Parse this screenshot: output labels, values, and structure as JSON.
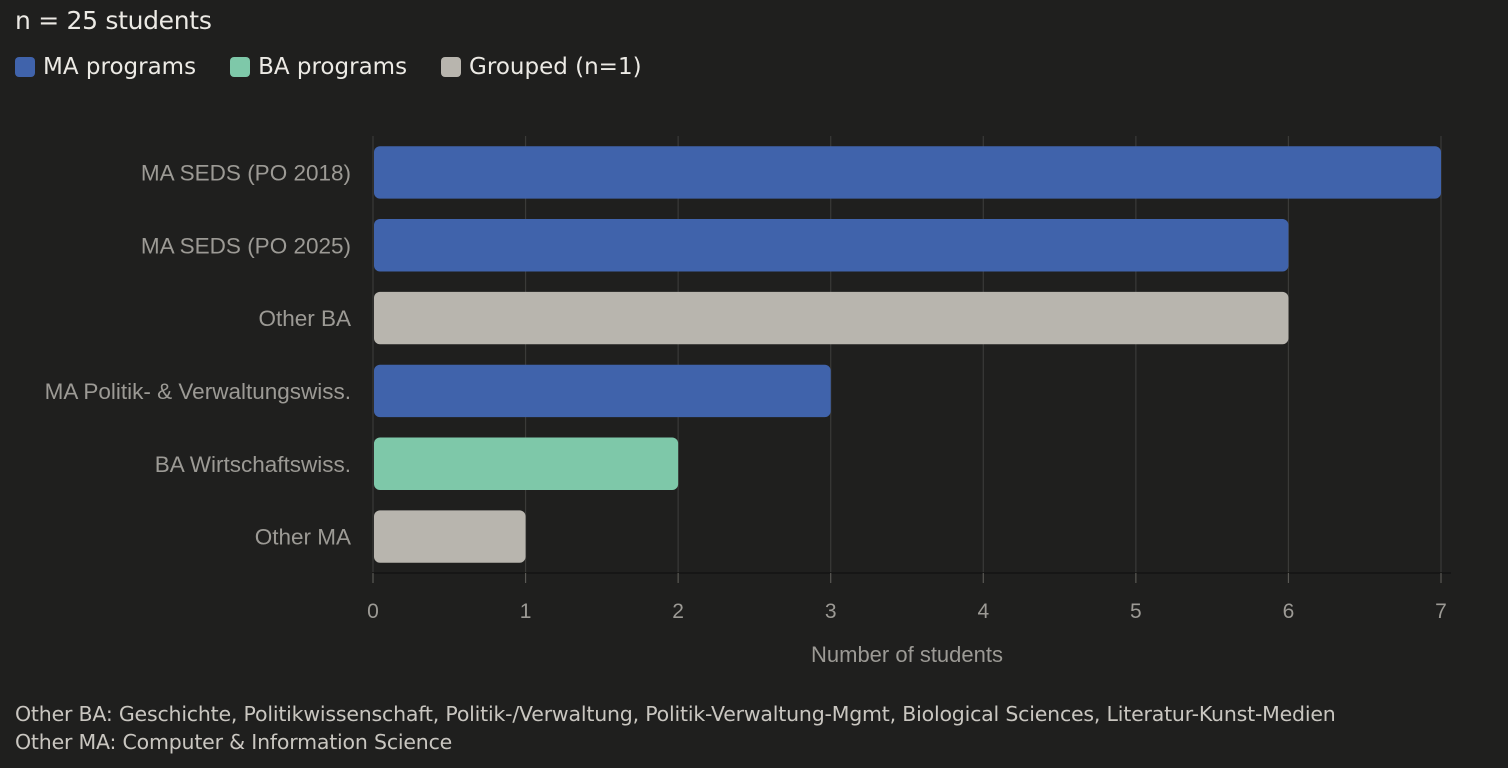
{
  "subtitle": "n = 25 students",
  "legend": [
    {
      "label": "MA programs",
      "color": "#4063ab"
    },
    {
      "label": "BA programs",
      "color": "#7ec8a9"
    },
    {
      "label": "Grouped (n=1)",
      "color": "#b8b5ae"
    }
  ],
  "chart_data": {
    "type": "bar",
    "orientation": "horizontal",
    "categories": [
      "MA SEDS (PO 2018)",
      "MA SEDS (PO 2025)",
      "Other BA",
      "MA Politik- & Verwaltungswiss.",
      "BA Wirtschaftswiss.",
      "Other MA"
    ],
    "values": [
      7,
      6,
      6,
      3,
      2,
      1
    ],
    "groups": [
      "MA programs",
      "MA programs",
      "Grouped (n=1)",
      "MA programs",
      "BA programs",
      "Grouped (n=1)"
    ],
    "xlabel": "Number of students",
    "xlim": [
      0,
      7
    ],
    "xticks": [
      0,
      1,
      2,
      3,
      4,
      5,
      6,
      7
    ],
    "grid": true,
    "legend_position": "top-left"
  },
  "footnotes": [
    "Other BA: Geschichte, Politikwissenschaft, Politik-/Verwaltung, Politik-Verwaltung-Mgmt, Biological Sciences, Literatur-Kunst-Medien",
    "Other MA: Computer & Information Science"
  ]
}
